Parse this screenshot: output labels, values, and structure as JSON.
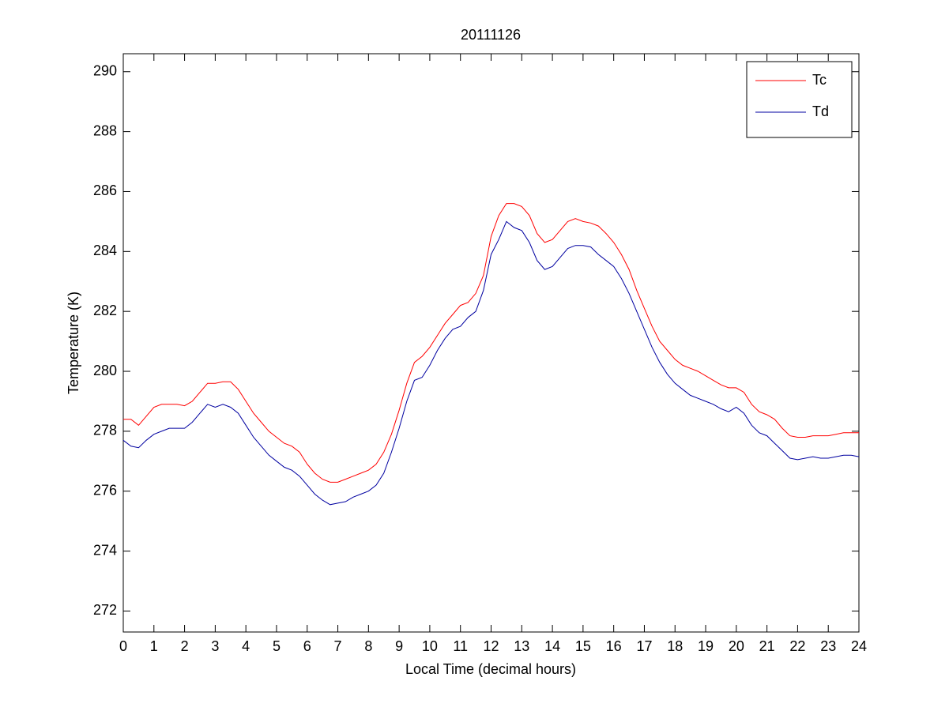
{
  "chart_data": {
    "type": "line",
    "title": "20111126",
    "x_label": "Local Time (decimal hours)",
    "y_label": "Temperature (K)",
    "x": [
      0,
      0.25,
      0.5,
      0.75,
      1,
      1.25,
      1.5,
      1.75,
      2,
      2.25,
      2.5,
      2.75,
      3,
      3.25,
      3.5,
      3.75,
      4,
      4.25,
      4.5,
      4.75,
      5,
      5.25,
      5.5,
      5.75,
      6,
      6.25,
      6.5,
      6.75,
      7,
      7.25,
      7.5,
      7.75,
      8,
      8.25,
      8.5,
      8.75,
      9,
      9.25,
      9.5,
      9.75,
      10,
      10.25,
      10.5,
      10.75,
      11,
      11.25,
      11.5,
      11.75,
      12,
      12.25,
      12.5,
      12.75,
      13,
      13.25,
      13.5,
      13.75,
      14,
      14.25,
      14.5,
      14.75,
      15,
      15.25,
      15.5,
      15.75,
      16,
      16.25,
      16.5,
      16.75,
      17,
      17.25,
      17.5,
      17.75,
      18,
      18.25,
      18.5,
      18.75,
      19,
      19.25,
      19.5,
      19.75,
      20,
      20.25,
      20.5,
      20.75,
      21,
      21.25,
      21.5,
      21.75,
      22,
      22.25,
      22.5,
      22.75,
      23,
      23.25,
      23.5,
      23.75,
      24
    ],
    "series": [
      {
        "name": "Tc",
        "color": "#ff0000",
        "values": [
          278.4,
          278.4,
          278.2,
          278.5,
          278.8,
          278.9,
          278.9,
          278.9,
          278.85,
          279.0,
          279.3,
          279.6,
          279.6,
          279.65,
          279.65,
          279.4,
          279.0,
          278.6,
          278.3,
          278.0,
          277.8,
          277.6,
          277.5,
          277.3,
          276.9,
          276.6,
          276.4,
          276.3,
          276.3,
          276.4,
          276.5,
          276.6,
          276.7,
          276.9,
          277.3,
          277.9,
          278.7,
          279.6,
          280.3,
          280.5,
          280.8,
          281.2,
          281.6,
          281.9,
          282.2,
          282.3,
          282.6,
          283.2,
          284.5,
          285.2,
          285.6,
          285.6,
          285.5,
          285.2,
          284.6,
          284.3,
          284.4,
          284.7,
          285.0,
          285.1,
          285.0,
          284.95,
          284.85,
          284.6,
          284.3,
          283.9,
          283.4,
          282.7,
          282.1,
          281.5,
          281.0,
          280.7,
          280.4,
          280.2,
          280.1,
          280.0,
          279.85,
          279.7,
          279.55,
          279.45,
          279.45,
          279.3,
          278.9,
          278.65,
          278.55,
          278.4,
          278.1,
          277.85,
          277.8,
          277.8,
          277.85,
          277.85,
          277.85,
          277.9,
          277.95,
          277.95,
          277.95
        ]
      },
      {
        "name": "Td",
        "color": "#0000a0",
        "values": [
          277.7,
          277.5,
          277.45,
          277.7,
          277.9,
          278.0,
          278.1,
          278.1,
          278.1,
          278.3,
          278.6,
          278.9,
          278.8,
          278.9,
          278.8,
          278.6,
          278.2,
          277.8,
          277.5,
          277.2,
          277.0,
          276.8,
          276.7,
          276.5,
          276.2,
          275.9,
          275.7,
          275.55,
          275.6,
          275.65,
          275.8,
          275.9,
          276.0,
          276.2,
          276.6,
          277.3,
          278.1,
          279.0,
          279.7,
          279.8,
          280.2,
          280.7,
          281.1,
          281.4,
          281.5,
          281.8,
          282.0,
          282.7,
          283.9,
          284.4,
          285.0,
          284.8,
          284.7,
          284.3,
          283.7,
          283.4,
          283.5,
          283.8,
          284.1,
          284.2,
          284.2,
          284.15,
          283.9,
          283.7,
          283.5,
          283.1,
          282.6,
          282.0,
          281.4,
          280.8,
          280.3,
          279.9,
          279.6,
          279.4,
          279.2,
          279.1,
          279.0,
          278.9,
          278.75,
          278.65,
          278.8,
          278.6,
          278.2,
          277.95,
          277.85,
          277.6,
          277.35,
          277.1,
          277.05,
          277.1,
          277.15,
          277.1,
          277.1,
          277.15,
          277.2,
          277.2,
          277.15
        ]
      }
    ],
    "xlim": [
      0,
      24
    ],
    "xticks": [
      0,
      1,
      2,
      3,
      4,
      5,
      6,
      7,
      8,
      9,
      10,
      11,
      12,
      13,
      14,
      15,
      16,
      17,
      18,
      19,
      20,
      21,
      22,
      23,
      24
    ],
    "ylim": [
      271.3,
      290.6
    ],
    "yticks": [
      272,
      274,
      276,
      278,
      280,
      282,
      284,
      286,
      288,
      290
    ],
    "grid": false,
    "legend": "top-right"
  }
}
